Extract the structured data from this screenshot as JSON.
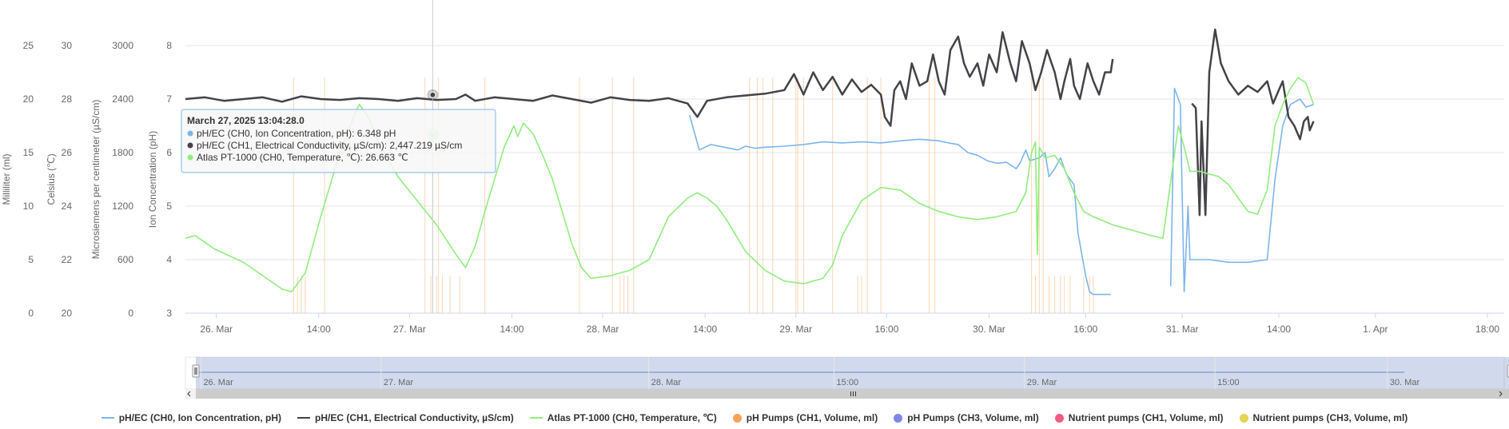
{
  "chart_data": {
    "type": "line",
    "y_axes": [
      {
        "id": "ml",
        "title": "Milliliter (ml)",
        "min": 0,
        "max": 25,
        "ticks": [
          "0",
          "5",
          "10",
          "15",
          "20",
          "25"
        ]
      },
      {
        "id": "c",
        "title": "Celsius (℃)",
        "min": 20,
        "max": 30,
        "ticks": [
          "20",
          "22",
          "24",
          "26",
          "28",
          "30"
        ]
      },
      {
        "id": "ec",
        "title": "Microsiemens per centimeter (µS/cm)",
        "min": 0,
        "max": 3000,
        "ticks": [
          "0",
          "600",
          "1200",
          "1800",
          "2400",
          "3000"
        ]
      },
      {
        "id": "ph",
        "title": "Ion Concentration (pH)",
        "min": 3,
        "max": 8,
        "ticks": [
          "3",
          "4",
          "5",
          "6",
          "7",
          "8"
        ]
      }
    ],
    "x_ticks": [
      "26. Mar",
      "14:00",
      "27. Mar",
      "14:00",
      "28. Mar",
      "14:00",
      "29. Mar",
      "16:00",
      "30. Mar",
      "16:00",
      "31. Mar",
      "14:00",
      "1. Apr",
      "18:00"
    ],
    "x_range": [
      "2025-03-26 00:00",
      "2025-04-01 20:00"
    ],
    "navigator_labels": [
      "26. Mar",
      "27. Mar",
      "28. Mar",
      "15:00",
      "29. Mar",
      "15:00",
      "30. Mar"
    ],
    "series": [
      {
        "name": "pH/EC (CH0, Ion Concentration, pH)",
        "axis": "ph",
        "color": "#7cb5ec",
        "points": [
          [
            2.61,
            6.7
          ],
          [
            2.66,
            6.05
          ],
          [
            2.72,
            6.15
          ],
          [
            2.79,
            6.1
          ],
          [
            2.86,
            6.05
          ],
          [
            2.9,
            6.12
          ],
          [
            2.95,
            6.08
          ],
          [
            3.0,
            6.1
          ],
          [
            3.1,
            6.12
          ],
          [
            3.2,
            6.15
          ],
          [
            3.3,
            6.2
          ],
          [
            3.4,
            6.18
          ],
          [
            3.5,
            6.2
          ],
          [
            3.6,
            6.18
          ],
          [
            3.7,
            6.22
          ],
          [
            3.8,
            6.25
          ],
          [
            3.9,
            6.22
          ],
          [
            3.95,
            6.18
          ],
          [
            4.0,
            6.15
          ],
          [
            4.05,
            6.0
          ],
          [
            4.1,
            5.95
          ],
          [
            4.15,
            5.85
          ],
          [
            4.2,
            5.8
          ],
          [
            4.25,
            5.82
          ],
          [
            4.3,
            5.7
          ],
          [
            4.32,
            5.8
          ],
          [
            4.35,
            6.05
          ],
          [
            4.37,
            5.85
          ],
          [
            4.42,
            5.9
          ],
          [
            4.45,
            6.0
          ],
          [
            4.47,
            5.55
          ],
          [
            4.5,
            5.7
          ],
          [
            4.53,
            5.9
          ],
          [
            4.56,
            5.6
          ],
          [
            4.6,
            5.4
          ],
          [
            4.62,
            4.5
          ],
          [
            4.64,
            4.1
          ],
          [
            4.66,
            3.7
          ],
          [
            4.68,
            3.4
          ],
          [
            4.7,
            3.35
          ],
          [
            4.75,
            3.35
          ],
          [
            4.79,
            3.35
          ],
          [
            5.1,
            3.5
          ],
          [
            5.12,
            7.2
          ],
          [
            5.15,
            6.9
          ],
          [
            5.17,
            3.4
          ],
          [
            5.19,
            5.0
          ],
          [
            5.2,
            4.0
          ],
          [
            5.23,
            4.0
          ],
          [
            5.3,
            4.0
          ],
          [
            5.4,
            3.95
          ],
          [
            5.5,
            3.95
          ],
          [
            5.6,
            4.0
          ],
          [
            5.64,
            5.5
          ],
          [
            5.68,
            6.5
          ],
          [
            5.72,
            6.9
          ],
          [
            5.77,
            7.0
          ],
          [
            5.8,
            6.85
          ],
          [
            5.84,
            6.9
          ]
        ]
      },
      {
        "name": "pH/EC (CH1, Electrical Conductivity, µS/cm)",
        "axis": "ec",
        "color": "#434348",
        "points": [
          [
            0.0,
            2400
          ],
          [
            0.1,
            2420
          ],
          [
            0.2,
            2380
          ],
          [
            0.3,
            2400
          ],
          [
            0.4,
            2420
          ],
          [
            0.5,
            2370
          ],
          [
            0.6,
            2430
          ],
          [
            0.7,
            2400
          ],
          [
            0.8,
            2390
          ],
          [
            0.9,
            2410
          ],
          [
            1.0,
            2400
          ],
          [
            1.1,
            2380
          ],
          [
            1.2,
            2410
          ],
          [
            1.3,
            2390
          ],
          [
            1.4,
            2400
          ],
          [
            1.45,
            2450
          ],
          [
            1.5,
            2380
          ],
          [
            1.6,
            2420
          ],
          [
            1.7,
            2400
          ],
          [
            1.8,
            2380
          ],
          [
            1.9,
            2440
          ],
          [
            2.0,
            2400
          ],
          [
            2.1,
            2360
          ],
          [
            2.2,
            2420
          ],
          [
            2.3,
            2390
          ],
          [
            2.4,
            2380
          ],
          [
            2.5,
            2410
          ],
          [
            2.6,
            2350
          ],
          [
            2.65,
            2200
          ],
          [
            2.7,
            2380
          ],
          [
            2.8,
            2420
          ],
          [
            2.9,
            2440
          ],
          [
            3.0,
            2460
          ],
          [
            3.1,
            2500
          ],
          [
            3.15,
            2680
          ],
          [
            3.2,
            2450
          ],
          [
            3.25,
            2700
          ],
          [
            3.3,
            2500
          ],
          [
            3.35,
            2650
          ],
          [
            3.4,
            2450
          ],
          [
            3.45,
            2620
          ],
          [
            3.5,
            2480
          ],
          [
            3.55,
            2560
          ],
          [
            3.6,
            2450
          ],
          [
            3.62,
            2200
          ],
          [
            3.65,
            2100
          ],
          [
            3.67,
            2500
          ],
          [
            3.7,
            2600
          ],
          [
            3.73,
            2400
          ],
          [
            3.76,
            2800
          ],
          [
            3.8,
            2550
          ],
          [
            3.84,
            2600
          ],
          [
            3.87,
            2900
          ],
          [
            3.9,
            2600
          ],
          [
            3.93,
            2450
          ],
          [
            3.96,
            2950
          ],
          [
            4.0,
            3100
          ],
          [
            4.03,
            2800
          ],
          [
            4.06,
            2650
          ],
          [
            4.1,
            2800
          ],
          [
            4.13,
            2550
          ],
          [
            4.16,
            2900
          ],
          [
            4.2,
            2700
          ],
          [
            4.23,
            3150
          ],
          [
            4.27,
            2800
          ],
          [
            4.3,
            2600
          ],
          [
            4.33,
            3050
          ],
          [
            4.37,
            2800
          ],
          [
            4.4,
            2500
          ],
          [
            4.43,
            2700
          ],
          [
            4.46,
            2950
          ],
          [
            4.5,
            2700
          ],
          [
            4.53,
            2400
          ],
          [
            4.55,
            2600
          ],
          [
            4.58,
            2850
          ],
          [
            4.6,
            2550
          ],
          [
            4.63,
            2400
          ],
          [
            4.67,
            2800
          ],
          [
            4.7,
            2600
          ],
          [
            4.73,
            2450
          ],
          [
            4.76,
            2700
          ],
          [
            4.79,
            2700
          ],
          [
            4.8,
            2850
          ],
          [
            5.21,
            2350
          ],
          [
            5.23,
            2300
          ],
          [
            5.25,
            1100
          ],
          [
            5.26,
            2150
          ],
          [
            5.28,
            1100
          ],
          [
            5.3,
            2700
          ],
          [
            5.33,
            3180
          ],
          [
            5.36,
            2800
          ],
          [
            5.4,
            2600
          ],
          [
            5.45,
            2450
          ],
          [
            5.5,
            2550
          ],
          [
            5.55,
            2480
          ],
          [
            5.6,
            2600
          ],
          [
            5.63,
            2350
          ],
          [
            5.66,
            2500
          ],
          [
            5.68,
            2600
          ],
          [
            5.71,
            2200
          ],
          [
            5.74,
            2100
          ],
          [
            5.77,
            1950
          ],
          [
            5.79,
            2150
          ],
          [
            5.81,
            2200
          ],
          [
            5.82,
            2050
          ],
          [
            5.84,
            2150
          ]
        ]
      },
      {
        "name": "Atlas PT-1000 (CH0, Temperature, ℃)",
        "axis": "c",
        "color": "#90ed7d",
        "points": [
          [
            0.0,
            22.8
          ],
          [
            0.05,
            22.9
          ],
          [
            0.15,
            22.4
          ],
          [
            0.3,
            21.9
          ],
          [
            0.4,
            21.4
          ],
          [
            0.5,
            20.9
          ],
          [
            0.55,
            20.8
          ],
          [
            0.62,
            21.5
          ],
          [
            0.7,
            23.6
          ],
          [
            0.8,
            26.0
          ],
          [
            0.88,
            27.5
          ],
          [
            0.9,
            27.8
          ],
          [
            0.95,
            27.3
          ],
          [
            1.0,
            26.4
          ],
          [
            1.1,
            25.1
          ],
          [
            1.2,
            24.2
          ],
          [
            1.3,
            23.3
          ],
          [
            1.4,
            22.2
          ],
          [
            1.45,
            21.7
          ],
          [
            1.5,
            22.5
          ],
          [
            1.55,
            23.8
          ],
          [
            1.6,
            25.0
          ],
          [
            1.65,
            26.2
          ],
          [
            1.7,
            27.0
          ],
          [
            1.72,
            26.6
          ],
          [
            1.75,
            27.1
          ],
          [
            1.8,
            26.7
          ],
          [
            1.85,
            25.9
          ],
          [
            1.9,
            25.0
          ],
          [
            1.95,
            23.8
          ],
          [
            2.0,
            22.6
          ],
          [
            2.05,
            21.7
          ],
          [
            2.1,
            21.3
          ],
          [
            2.2,
            21.4
          ],
          [
            2.3,
            21.6
          ],
          [
            2.4,
            22.0
          ],
          [
            2.5,
            23.6
          ],
          [
            2.6,
            24.3
          ],
          [
            2.65,
            24.5
          ],
          [
            2.7,
            24.3
          ],
          [
            2.75,
            24.0
          ],
          [
            2.8,
            23.5
          ],
          [
            2.9,
            22.3
          ],
          [
            3.0,
            21.6
          ],
          [
            3.1,
            21.2
          ],
          [
            3.2,
            21.1
          ],
          [
            3.3,
            21.3
          ],
          [
            3.35,
            21.8
          ],
          [
            3.4,
            22.9
          ],
          [
            3.5,
            24.2
          ],
          [
            3.6,
            24.7
          ],
          [
            3.7,
            24.6
          ],
          [
            3.8,
            24.1
          ],
          [
            3.9,
            23.8
          ],
          [
            4.0,
            23.6
          ],
          [
            4.1,
            23.5
          ],
          [
            4.2,
            23.6
          ],
          [
            4.3,
            23.8
          ],
          [
            4.35,
            24.5
          ],
          [
            4.38,
            26.0
          ],
          [
            4.4,
            26.4
          ],
          [
            4.41,
            22.2
          ],
          [
            4.42,
            26.2
          ],
          [
            4.45,
            25.8
          ],
          [
            4.5,
            25.9
          ],
          [
            4.55,
            25.4
          ],
          [
            4.6,
            24.5
          ],
          [
            4.65,
            23.8
          ],
          [
            4.7,
            23.6
          ],
          [
            4.8,
            23.3
          ],
          [
            4.9,
            23.1
          ],
          [
            5.0,
            22.9
          ],
          [
            5.06,
            22.8
          ],
          [
            5.14,
            27.0
          ],
          [
            5.17,
            26.2
          ],
          [
            5.2,
            25.3
          ],
          [
            5.25,
            25.3
          ],
          [
            5.3,
            25.2
          ],
          [
            5.35,
            25.1
          ],
          [
            5.4,
            24.8
          ],
          [
            5.45,
            24.3
          ],
          [
            5.5,
            23.8
          ],
          [
            5.55,
            23.7
          ],
          [
            5.6,
            24.6
          ],
          [
            5.64,
            27.0
          ],
          [
            5.68,
            27.8
          ],
          [
            5.72,
            28.4
          ],
          [
            5.76,
            28.8
          ],
          [
            5.8,
            28.6
          ],
          [
            5.84,
            27.8
          ]
        ]
      }
    ],
    "event_series": [
      {
        "name": "pH Pumps (CH1, Volume, ml)",
        "color": "#f7a35c"
      },
      {
        "name": "pH Pumps (CH3, Volume, ml)",
        "color": "#8085e9"
      },
      {
        "name": "Nutrient pumps (CH1, Volume, ml)",
        "color": "#f15c80"
      },
      {
        "name": "Nutrient pumps (CH3, Volume, ml)",
        "color": "#e4d354"
      }
    ],
    "event_lines_tall": [
      0.56,
      0.72,
      1.24,
      1.28,
      1.31,
      1.55,
      2.04,
      2.21,
      2.32,
      2.92,
      2.96,
      2.99,
      3.04,
      3.16,
      3.17,
      3.2,
      3.35,
      3.53,
      3.6,
      3.85,
      3.88,
      4.38,
      4.42,
      4.44
    ],
    "event_lines_short": [
      0.58,
      0.6,
      0.62,
      1.27,
      1.3,
      1.33,
      1.37,
      1.42,
      2.25,
      2.27,
      2.29,
      3.48,
      3.5,
      4.4,
      4.47,
      4.5,
      4.53,
      4.55,
      4.58,
      4.65,
      4.68,
      4.7
    ],
    "tooltip": {
      "x": 1.28,
      "title": "March 27, 2025 13:04:28.0",
      "lines": [
        {
          "color": "#7cb5ec",
          "text": "pH/EC (CH0, Ion Concentration, pH): 6.348 pH"
        },
        {
          "color": "#434348",
          "text": "pH/EC (CH1, Electrical Conductivity, µS/cm): 2,447.219 µS/cm"
        },
        {
          "color": "#90ed7d",
          "text": "Atlas PT-1000 (CH0, Temperature, ℃): 26.663 ℃"
        }
      ]
    },
    "navigator": {
      "from": 0.0,
      "to": 4.83
    }
  }
}
